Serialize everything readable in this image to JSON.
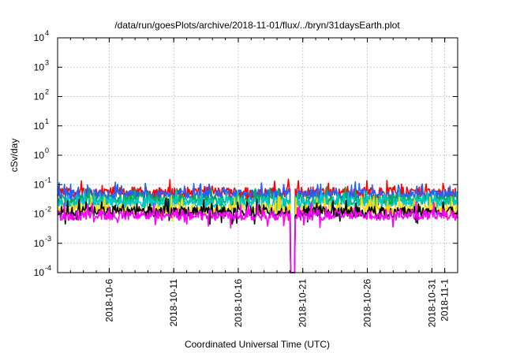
{
  "chart_data": {
    "type": "line",
    "title": "/data/run/goesPlots/archive/2018-11-01/flux/../bryn/31daysEarth.plot",
    "xlabel": "Coordinated Universal Time (UTC)",
    "ylabel": "cSv/day",
    "y_scale": "log",
    "ylim": [
      0.0001,
      10000
    ],
    "xlim": [
      "2018-10-02",
      "2018-11-02"
    ],
    "y_ticks": [
      {
        "value": 0.0001,
        "base": "10",
        "exp": "-4"
      },
      {
        "value": 0.001,
        "base": "10",
        "exp": "-3"
      },
      {
        "value": 0.01,
        "base": "10",
        "exp": "-2"
      },
      {
        "value": 0.1,
        "base": "10",
        "exp": "-1"
      },
      {
        "value": 1,
        "base": "10",
        "exp": "0"
      },
      {
        "value": 10,
        "base": "10",
        "exp": "1"
      },
      {
        "value": 100,
        "base": "10",
        "exp": "2"
      },
      {
        "value": 1000,
        "base": "10",
        "exp": "3"
      },
      {
        "value": 10000,
        "base": "10",
        "exp": "4"
      }
    ],
    "x_ticks": [
      {
        "date": "2018-10-06",
        "label": "2018-10-6"
      },
      {
        "date": "2018-10-11",
        "label": "2018-10-11"
      },
      {
        "date": "2018-10-16",
        "label": "2018-10-16"
      },
      {
        "date": "2018-10-21",
        "label": "2018-10-21"
      },
      {
        "date": "2018-10-26",
        "label": "2018-10-26"
      },
      {
        "date": "2018-10-31",
        "label": "2018-10-31"
      },
      {
        "date": "2018-11-01",
        "label": "2018-11-1"
      }
    ],
    "grid": true,
    "series": [
      {
        "color": "#ff0000",
        "level": 0.055
      },
      {
        "color": "#1e62ff",
        "level": 0.045
      },
      {
        "color": "#00b050",
        "level": 0.03
      },
      {
        "color": "#00c8c8",
        "level": 0.025
      },
      {
        "color": "#ffd700",
        "level": 0.015
      },
      {
        "color": "#000000",
        "level": 0.012
      },
      {
        "color": "#ff00ff",
        "level": 0.009
      }
    ],
    "events": [
      {
        "date": "2018-10-20T05:00",
        "min_value": 0.0001
      }
    ]
  }
}
